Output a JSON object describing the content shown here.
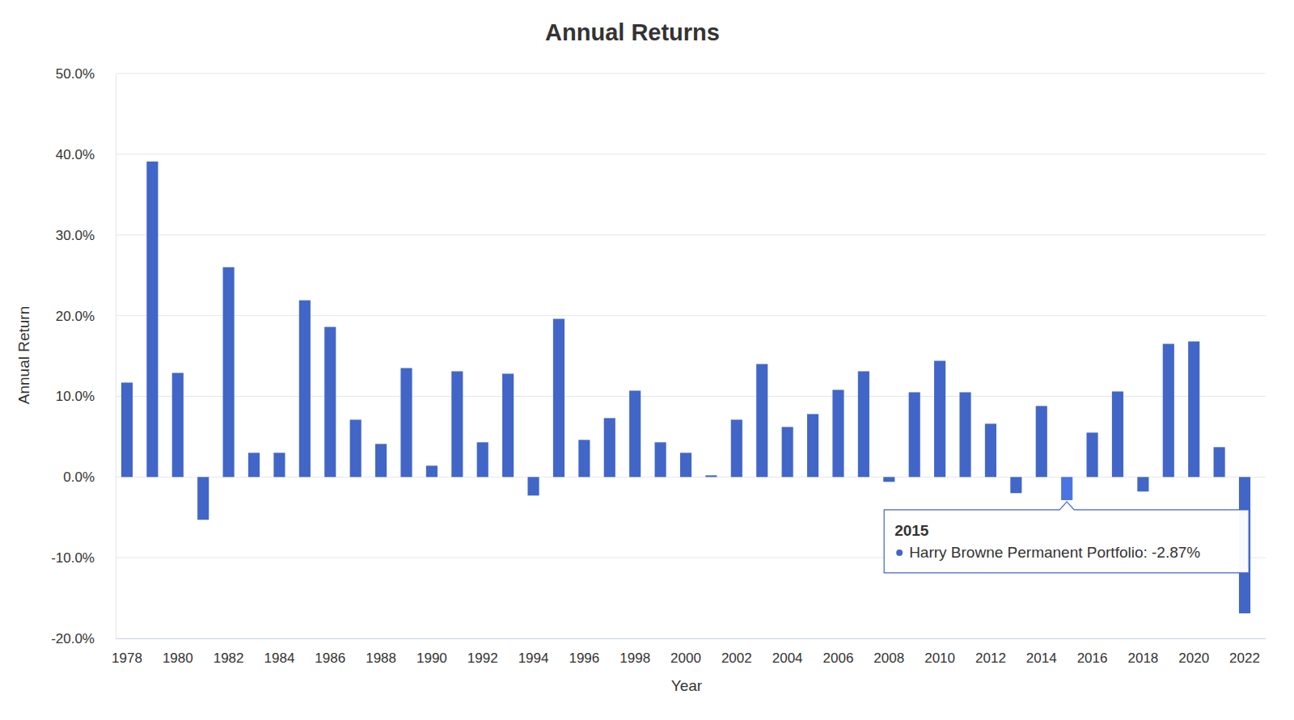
{
  "chart_data": {
    "type": "bar",
    "title": "Annual Returns",
    "x_label": "Year",
    "y_label": "Annual Return",
    "categories": [
      "1978",
      null,
      "1980",
      null,
      "1982",
      null,
      "1984",
      null,
      "1986",
      null,
      "1988",
      null,
      "1990",
      null,
      "1992",
      null,
      "1994",
      null,
      "1996",
      null,
      "1998",
      null,
      "2000",
      null,
      "2002",
      null,
      "2004",
      null,
      "2006",
      null,
      "2008",
      null,
      "2010",
      null,
      "2012",
      null,
      "2014",
      null,
      "2016",
      null,
      "2018",
      null,
      "2020",
      null,
      "2022"
    ],
    "values": [
      11.7,
      39.1,
      12.9,
      -5.3,
      26.0,
      3.0,
      3.0,
      21.9,
      18.6,
      7.1,
      4.1,
      13.5,
      1.4,
      13.1,
      4.3,
      12.8,
      -2.3,
      19.6,
      4.6,
      7.3,
      10.7,
      4.3,
      3.0,
      0.2,
      7.1,
      14.0,
      6.2,
      7.8,
      10.8,
      13.1,
      -0.6,
      10.5,
      14.4,
      10.5,
      6.6,
      -2.0,
      8.8,
      -2.87,
      5.5,
      10.6,
      -1.8,
      16.5,
      16.8,
      3.7,
      -16.9
    ],
    "color": "#4166c7",
    "ylim": [
      -20,
      50
    ],
    "yticks": [
      {
        "value": -20,
        "label": "-20.0%"
      },
      {
        "value": -10,
        "label": "-10.0%"
      },
      {
        "value": 0,
        "label": "0.0%"
      },
      {
        "value": 10,
        "label": "10.0%"
      },
      {
        "value": 20,
        "label": "20.0%"
      },
      {
        "value": 30,
        "label": "30.0%"
      },
      {
        "value": 40,
        "label": "40.0%"
      },
      {
        "value": 50,
        "label": "50.0%"
      }
    ],
    "grid": true,
    "tooltip": {
      "title": "2015",
      "text": "Harry Browne Permanent Portfolio: -2.87%"
    }
  }
}
